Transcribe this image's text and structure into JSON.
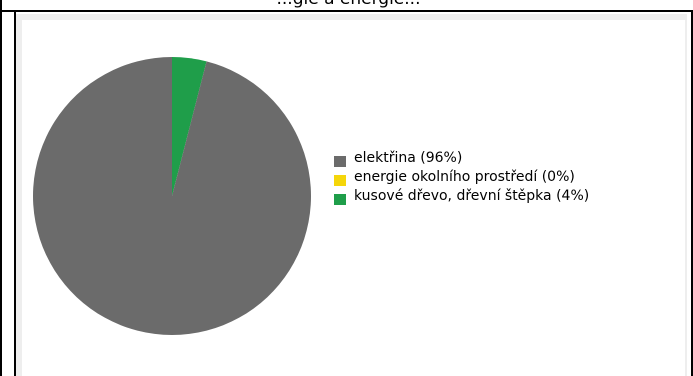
{
  "chart_data": {
    "type": "pie",
    "title": "",
    "title_partial": "...gie a energie...",
    "slices": [
      {
        "label": "elektřina (96%)",
        "value": 96,
        "color": "#6b6b6b"
      },
      {
        "label": "energie okolního prostředí (0%)",
        "value": 0,
        "color": "#f5d60a"
      },
      {
        "label": "kusové dřevo, dřevní štěpka (4%)",
        "value": 4,
        "color": "#1f9e4a"
      }
    ],
    "legend_position": "right",
    "start_angle_deg": 0
  }
}
